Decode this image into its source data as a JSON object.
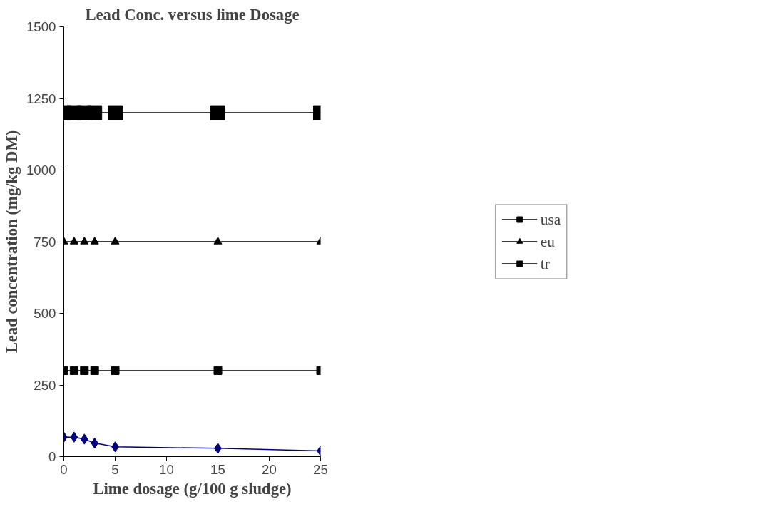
{
  "chart_data": {
    "type": "line",
    "title": "Lead Conc. versus lime Dosage",
    "xlabel": "Lime dosage (g/100 g sludge)",
    "ylabel": "Lead concentration (mg/kg DM)",
    "x": [
      0,
      1,
      2,
      3,
      5,
      15,
      25
    ],
    "series": [
      {
        "name": "usa",
        "color": "#000000",
        "values": [
          300,
          300,
          300,
          300,
          300,
          300,
          300
        ],
        "marker": "square"
      },
      {
        "name": "eu",
        "color": "#000000",
        "values": [
          750,
          750,
          750,
          750,
          750,
          750,
          750
        ],
        "marker": "triangle"
      },
      {
        "name": "tr",
        "color": "#000000",
        "values": [
          1200,
          1200,
          1200,
          1200,
          1200,
          1200,
          1200
        ],
        "marker": "square"
      },
      {
        "color": "#000080",
        "values": [
          68,
          68,
          61,
          47,
          34,
          29,
          20
        ],
        "marker": "diamond"
      }
    ],
    "xlim": [
      0,
      25
    ],
    "xticks": [
      0,
      5,
      10,
      15,
      20,
      25
    ],
    "ylim": [
      0,
      1500
    ],
    "yticks": [
      0,
      250,
      500,
      750,
      1000,
      1250,
      1500
    ],
    "grid": false,
    "legend": "right",
    "line_style": "solid"
  }
}
